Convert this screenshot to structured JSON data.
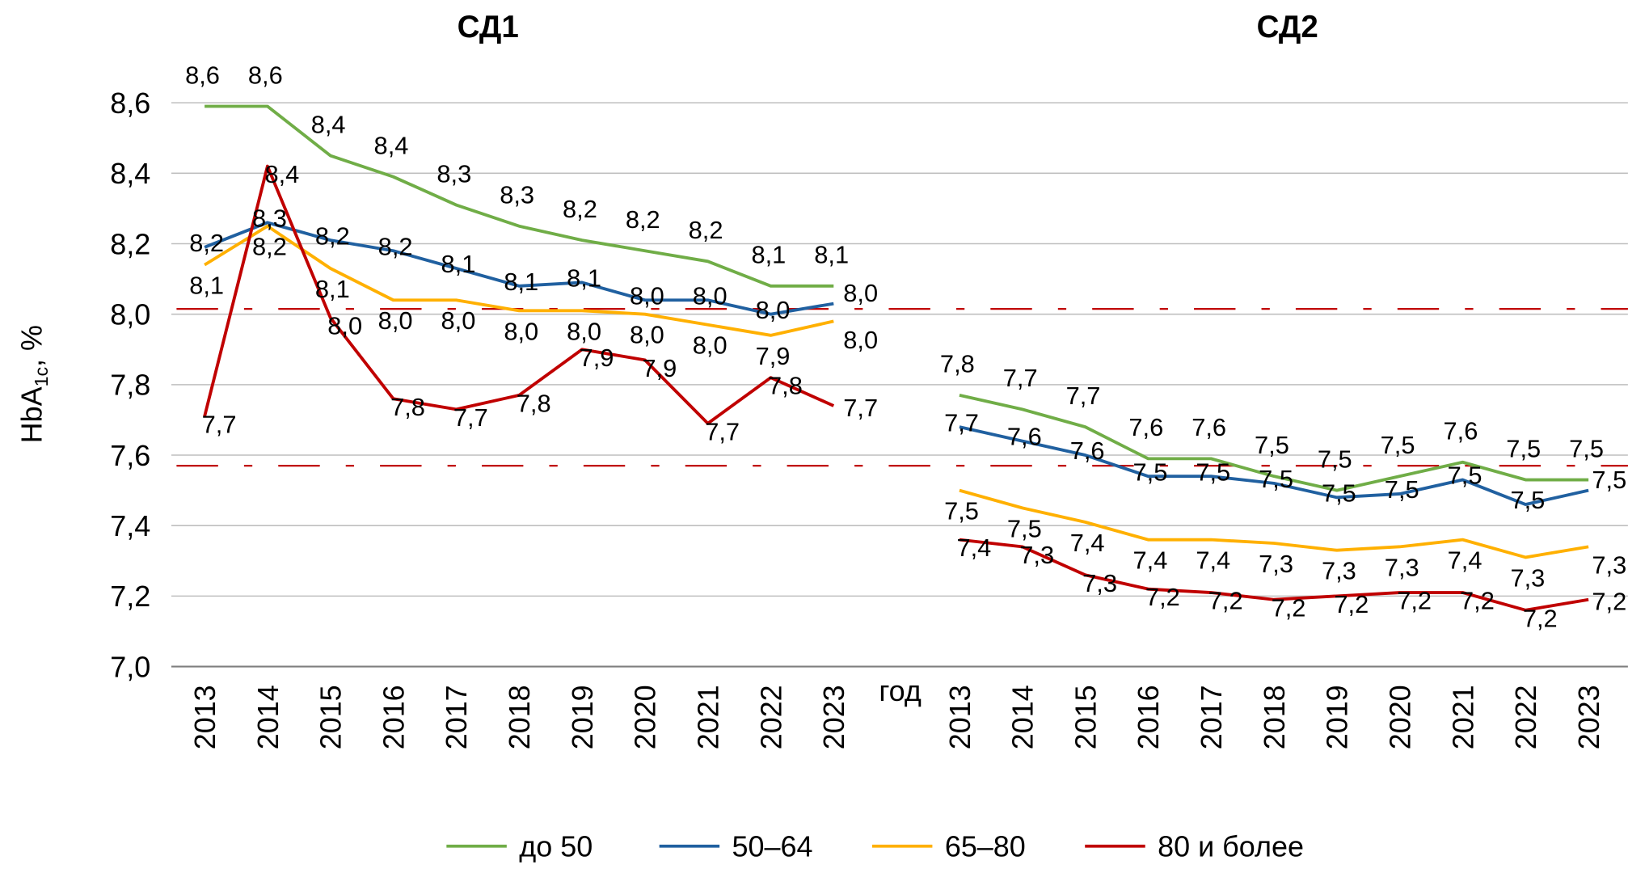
{
  "chart_data": {
    "type": "line",
    "ylabel": "HbA1c, %",
    "ylabel_main": "HbA",
    "ylabel_sub": "1c",
    "ylabel_suffix": ", %",
    "xlabel": "год",
    "ylim": [
      7.0,
      8.6
    ],
    "yticks": [
      "7,0",
      "7,2",
      "7,4",
      "7,6",
      "7,8",
      "8,0",
      "8,2",
      "8,4",
      "8,6"
    ],
    "ytick_values": [
      7.0,
      7.2,
      7.4,
      7.6,
      7.8,
      8.0,
      8.2,
      8.4,
      8.6
    ],
    "grid": true,
    "legend_position": "bottom",
    "reference_lines": [
      {
        "value": 8.015,
        "color": "#c00000",
        "style": "dash-dot"
      },
      {
        "value": 7.57,
        "color": "#c00000",
        "style": "dash-dot"
      }
    ],
    "colors": {
      "до 50": "#70ad47",
      "50–64": "#2060a0",
      "65–80": "#ffb000",
      "80 и более": "#c00000"
    },
    "panels": [
      {
        "title": "СД1",
        "categories": [
          "2013",
          "2014",
          "2015",
          "2016",
          "2017",
          "2018",
          "2019",
          "2020",
          "2021",
          "2022",
          "2023"
        ],
        "series": [
          {
            "name": "до 50",
            "values": [
              8.59,
              8.59,
              8.45,
              8.39,
              8.31,
              8.25,
              8.21,
              8.18,
              8.15,
              8.08,
              8.08
            ],
            "labels": [
              "8,6",
              "8,6",
              "8,4",
              "8,4",
              "8,3",
              "8,3",
              "8,2",
              "8,2",
              "8,2",
              "8,1",
              "8,1"
            ]
          },
          {
            "name": "50–64",
            "values": [
              8.19,
              8.26,
              8.21,
              8.18,
              8.13,
              8.08,
              8.09,
              8.04,
              8.04,
              8.0,
              8.03
            ],
            "labels": [
              "8,2",
              "8,3",
              "8,2",
              "8,2",
              "8,1",
              "8,1",
              "8,1",
              "8,0",
              "8,0",
              "8,0",
              "8,0"
            ]
          },
          {
            "name": "65–80",
            "values": [
              8.14,
              8.25,
              8.13,
              8.04,
              8.04,
              8.01,
              8.01,
              8.0,
              7.97,
              7.94,
              7.98
            ],
            "labels": [
              "8,1",
              "8,2",
              "8,1",
              "8,0",
              "8,0",
              "8,0",
              "8,0",
              "8,0",
              "8,0",
              "7,9",
              "8,0"
            ]
          },
          {
            "name": "80 и более",
            "values": [
              7.71,
              8.42,
              7.99,
              7.76,
              7.73,
              7.77,
              7.9,
              7.87,
              7.69,
              7.82,
              7.74
            ],
            "labels": [
              "7,7",
              "8,4",
              "8,0",
              "7,8",
              "7,7",
              "7,8",
              "7,9",
              "7,9",
              "7,7",
              "7,8",
              "7,7"
            ]
          }
        ]
      },
      {
        "title": "СД2",
        "categories": [
          "2013",
          "2014",
          "2015",
          "2016",
          "2017",
          "2018",
          "2019",
          "2020",
          "2021",
          "2022",
          "2023"
        ],
        "series": [
          {
            "name": "до 50",
            "values": [
              7.77,
              7.73,
              7.68,
              7.59,
              7.59,
              7.54,
              7.5,
              7.54,
              7.58,
              7.53,
              7.53
            ],
            "labels": [
              "7,8",
              "7,7",
              "7,7",
              "7,6",
              "7,6",
              "7,5",
              "7,5",
              "7,5",
              "7,6",
              "7,5",
              "7,5"
            ]
          },
          {
            "name": "50–64",
            "values": [
              7.68,
              7.64,
              7.6,
              7.54,
              7.54,
              7.52,
              7.48,
              7.49,
              7.53,
              7.46,
              7.5
            ],
            "labels": [
              "7,7",
              "7,6",
              "7,6",
              "7,5",
              "7,5",
              "7,5",
              "7,5",
              "7,5",
              "7,5",
              "7,5",
              "7,5"
            ]
          },
          {
            "name": "65–80",
            "values": [
              7.5,
              7.45,
              7.41,
              7.36,
              7.36,
              7.35,
              7.33,
              7.34,
              7.36,
              7.31,
              7.34
            ],
            "labels": [
              "7,5",
              "7,5",
              "7,4",
              "7,4",
              "7,4",
              "7,3",
              "7,3",
              "7,3",
              "7,4",
              "7,3",
              "7,3"
            ]
          },
          {
            "name": "80 и более",
            "values": [
              7.36,
              7.34,
              7.26,
              7.22,
              7.21,
              7.19,
              7.2,
              7.21,
              7.21,
              7.16,
              7.19
            ],
            "labels": [
              "7,4",
              "7,3",
              "7,3",
              "7,2",
              "7,2",
              "7,2",
              "7,2",
              "7,2",
              "7,2",
              "7,2",
              "7,2"
            ]
          }
        ]
      }
    ]
  }
}
